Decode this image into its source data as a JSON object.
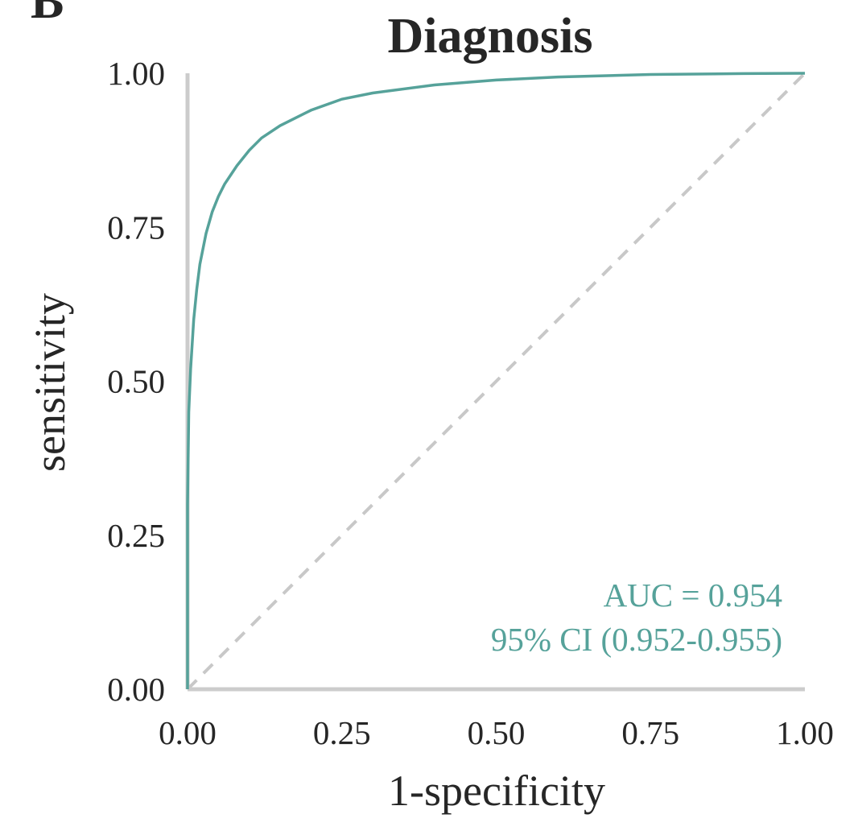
{
  "chart_data": {
    "type": "line",
    "title": "Diagnosis",
    "panel_label": "B",
    "xlabel": "1-specificity",
    "ylabel": "sensitivity",
    "xlim": [
      0,
      1
    ],
    "ylim": [
      0,
      1
    ],
    "x_ticks": [
      "0.00",
      "0.25",
      "0.50",
      "0.75",
      "1.00"
    ],
    "y_ticks": [
      "0.00",
      "0.25",
      "0.50",
      "0.75",
      "1.00"
    ],
    "grid": false,
    "series": [
      {
        "color": "#56a29a",
        "x": [
          0.0,
          0.0,
          0.002,
          0.005,
          0.01,
          0.015,
          0.02,
          0.03,
          0.04,
          0.05,
          0.06,
          0.07,
          0.08,
          0.1,
          0.12,
          0.15,
          0.2,
          0.25,
          0.3,
          0.4,
          0.5,
          0.6,
          0.75,
          0.9,
          1.0
        ],
        "y": [
          0.0,
          0.3,
          0.45,
          0.52,
          0.6,
          0.65,
          0.69,
          0.74,
          0.775,
          0.8,
          0.82,
          0.835,
          0.85,
          0.875,
          0.895,
          0.915,
          0.94,
          0.958,
          0.968,
          0.981,
          0.989,
          0.994,
          0.998,
          0.9995,
          1.0
        ]
      }
    ],
    "reference_line": {
      "x": [
        0,
        1
      ],
      "y": [
        0,
        1
      ],
      "style": "dashed",
      "color": "#c8c8c8"
    },
    "annotation": {
      "lines": [
        "AUC = 0.954",
        "95% CI (0.952-0.955)"
      ],
      "color": "#56a29a",
      "placement": "bottom-right"
    },
    "axis_color": "#cccccc"
  }
}
